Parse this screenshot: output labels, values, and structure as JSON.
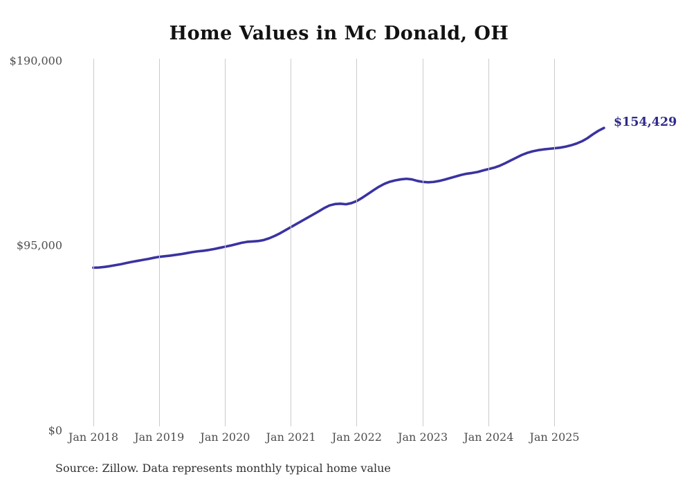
{
  "page": {
    "background": "#ffffff"
  },
  "chart_data": {
    "type": "line",
    "title": "Home Values in Mc Donald, OH",
    "source_note": "Source: Zillow. Data represents monthly typical home value",
    "latest_value_label": "$154,429",
    "latest_value": 154429,
    "latest_label_color": "#2f2a8a",
    "grid_color": "#cbcbcb",
    "axis_text_color": "#4d4d4d",
    "legend": "none",
    "grid": "vertical-year-lines-only",
    "xlabel": "",
    "ylabel": "",
    "ylim": [
      0,
      190000
    ],
    "y_ticks": [
      {
        "label": "$190,000",
        "value": 190000
      },
      {
        "label": "$95,000",
        "value": 95000
      },
      {
        "label": "$0",
        "value": 0
      }
    ],
    "x_ticks": [
      {
        "label": "Jan 2018",
        "month_index": 0
      },
      {
        "label": "Jan 2019",
        "month_index": 12
      },
      {
        "label": "Jan 2020",
        "month_index": 24
      },
      {
        "label": "Jan 2021",
        "month_index": 36
      },
      {
        "label": "Jan 2022",
        "month_index": 48
      },
      {
        "label": "Jan 2023",
        "month_index": 60
      },
      {
        "label": "Jan 2024",
        "month_index": 72
      },
      {
        "label": "Jan 2025",
        "month_index": 84
      }
    ],
    "series": [
      {
        "name": "Typical home value (monthly)",
        "color": "#3a33a0",
        "stroke_width": 3.6,
        "months": [
          "2018-01",
          "2018-02",
          "2018-03",
          "2018-04",
          "2018-05",
          "2018-06",
          "2018-07",
          "2018-08",
          "2018-09",
          "2018-10",
          "2018-11",
          "2018-12",
          "2019-01",
          "2019-02",
          "2019-03",
          "2019-04",
          "2019-05",
          "2019-06",
          "2019-07",
          "2019-08",
          "2019-09",
          "2019-10",
          "2019-11",
          "2019-12",
          "2020-01",
          "2020-02",
          "2020-03",
          "2020-04",
          "2020-05",
          "2020-06",
          "2020-07",
          "2020-08",
          "2020-09",
          "2020-10",
          "2020-11",
          "2020-12",
          "2021-01",
          "2021-02",
          "2021-03",
          "2021-04",
          "2021-05",
          "2021-06",
          "2021-07",
          "2021-08",
          "2021-09",
          "2021-10",
          "2021-11",
          "2021-12",
          "2022-01",
          "2022-02",
          "2022-03",
          "2022-04",
          "2022-05",
          "2022-06",
          "2022-07",
          "2022-08",
          "2022-09",
          "2022-10",
          "2022-11",
          "2022-12",
          "2023-01",
          "2023-02",
          "2023-03",
          "2023-04",
          "2023-05",
          "2023-06",
          "2023-07",
          "2023-08",
          "2023-09",
          "2023-10",
          "2023-11",
          "2023-12",
          "2024-01",
          "2024-02",
          "2024-03",
          "2024-04",
          "2024-05",
          "2024-06",
          "2024-07",
          "2024-08",
          "2024-09",
          "2024-10",
          "2024-11",
          "2024-12",
          "2025-01",
          "2025-02",
          "2025-03",
          "2025-04",
          "2025-05",
          "2025-06",
          "2025-07",
          "2025-08",
          "2025-09",
          "2025-10"
        ],
        "values": [
          82600,
          82700,
          83000,
          83400,
          83900,
          84400,
          85000,
          85600,
          86100,
          86600,
          87100,
          87700,
          88200,
          88500,
          88800,
          89200,
          89600,
          90100,
          90600,
          91000,
          91300,
          91700,
          92200,
          92800,
          93400,
          94000,
          94700,
          95400,
          95900,
          96100,
          96300,
          96800,
          97700,
          98900,
          100300,
          101900,
          103500,
          105100,
          106700,
          108300,
          109900,
          111500,
          113200,
          114600,
          115300,
          115500,
          115200,
          115800,
          116900,
          118600,
          120500,
          122400,
          124200,
          125700,
          126800,
          127500,
          128000,
          128300,
          128000,
          127200,
          126700,
          126500,
          126700,
          127200,
          127900,
          128700,
          129500,
          130300,
          130900,
          131300,
          131800,
          132600,
          133300,
          134000,
          135000,
          136300,
          137700,
          139100,
          140500,
          141600,
          142400,
          143000,
          143400,
          143700,
          144000,
          144300,
          144800,
          145500,
          146400,
          147600,
          149200,
          151200,
          153000,
          154429
        ]
      }
    ]
  }
}
